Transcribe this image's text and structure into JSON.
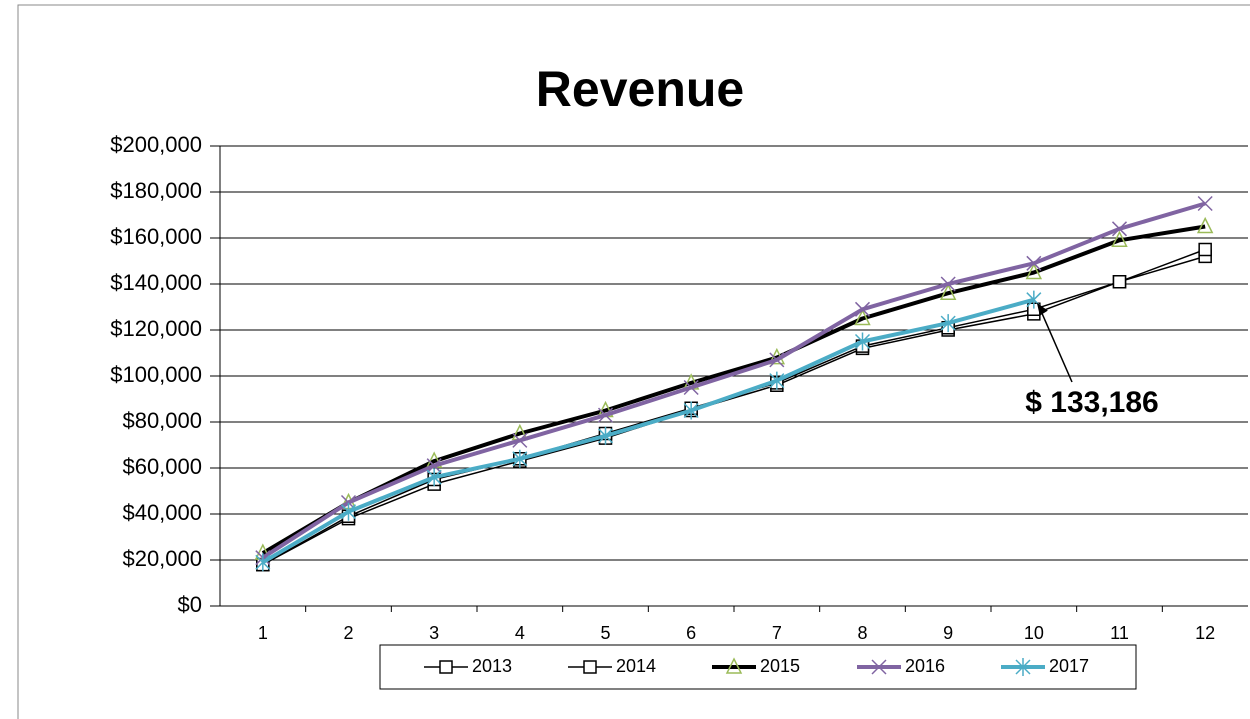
{
  "chart_data": {
    "type": "line",
    "title": "Revenue",
    "categories": [
      "1",
      "2",
      "3",
      "4",
      "5",
      "6",
      "7",
      "8",
      "9",
      "10",
      "11",
      "12"
    ],
    "series": [
      {
        "name": "2013",
        "color": "#000000",
        "line_width": 1.5,
        "marker": "square",
        "marker_color": "#000000",
        "values": [
          18000,
          38000,
          53000,
          63000,
          73000,
          85000,
          96000,
          112000,
          120000,
          127000,
          141000,
          152000
        ]
      },
      {
        "name": "2014",
        "color": "#000000",
        "line_width": 1.5,
        "marker": "square",
        "marker_color": "#000000",
        "values": [
          18000,
          39000,
          55000,
          64000,
          75000,
          86000,
          97000,
          113000,
          121000,
          129000,
          141000,
          155000
        ]
      },
      {
        "name": "2015",
        "color": "#000000",
        "line_width": 4,
        "marker": "triangle",
        "marker_color": "#9bbb59",
        "values": [
          23000,
          45000,
          63000,
          75000,
          85000,
          97000,
          108000,
          125000,
          136000,
          145000,
          159000,
          165000
        ]
      },
      {
        "name": "2016",
        "color": "#8064a2",
        "line_width": 4,
        "marker": "x",
        "marker_color": "#8064a2",
        "values": [
          21000,
          45000,
          61000,
          72000,
          83000,
          95000,
          107000,
          129000,
          140000,
          149000,
          164000,
          175000
        ]
      },
      {
        "name": "2017",
        "color": "#4bacc6",
        "line_width": 4,
        "marker": "star",
        "marker_color": "#4bacc6",
        "values": [
          19000,
          41000,
          56000,
          64000,
          74000,
          85000,
          98000,
          115000,
          123000,
          133186,
          null,
          null
        ]
      }
    ],
    "annotations": [
      {
        "text": "$ 133,186"
      }
    ],
    "ylim": [
      0,
      200000
    ],
    "yticks": [
      {
        "value": 0,
        "label": "$0"
      },
      {
        "value": 20000,
        "label": "$20,000"
      },
      {
        "value": 40000,
        "label": "$40,000"
      },
      {
        "value": 60000,
        "label": "$60,000"
      },
      {
        "value": 80000,
        "label": "$80,000"
      },
      {
        "value": 100000,
        "label": "$100,000"
      },
      {
        "value": 120000,
        "label": "$120,000"
      },
      {
        "value": 140000,
        "label": "$140,000"
      },
      {
        "value": 160000,
        "label": "$160,000"
      },
      {
        "value": 180000,
        "label": "$180,000"
      },
      {
        "value": 200000,
        "label": "$200,000"
      }
    ],
    "grid": true,
    "legend": "bottom"
  }
}
